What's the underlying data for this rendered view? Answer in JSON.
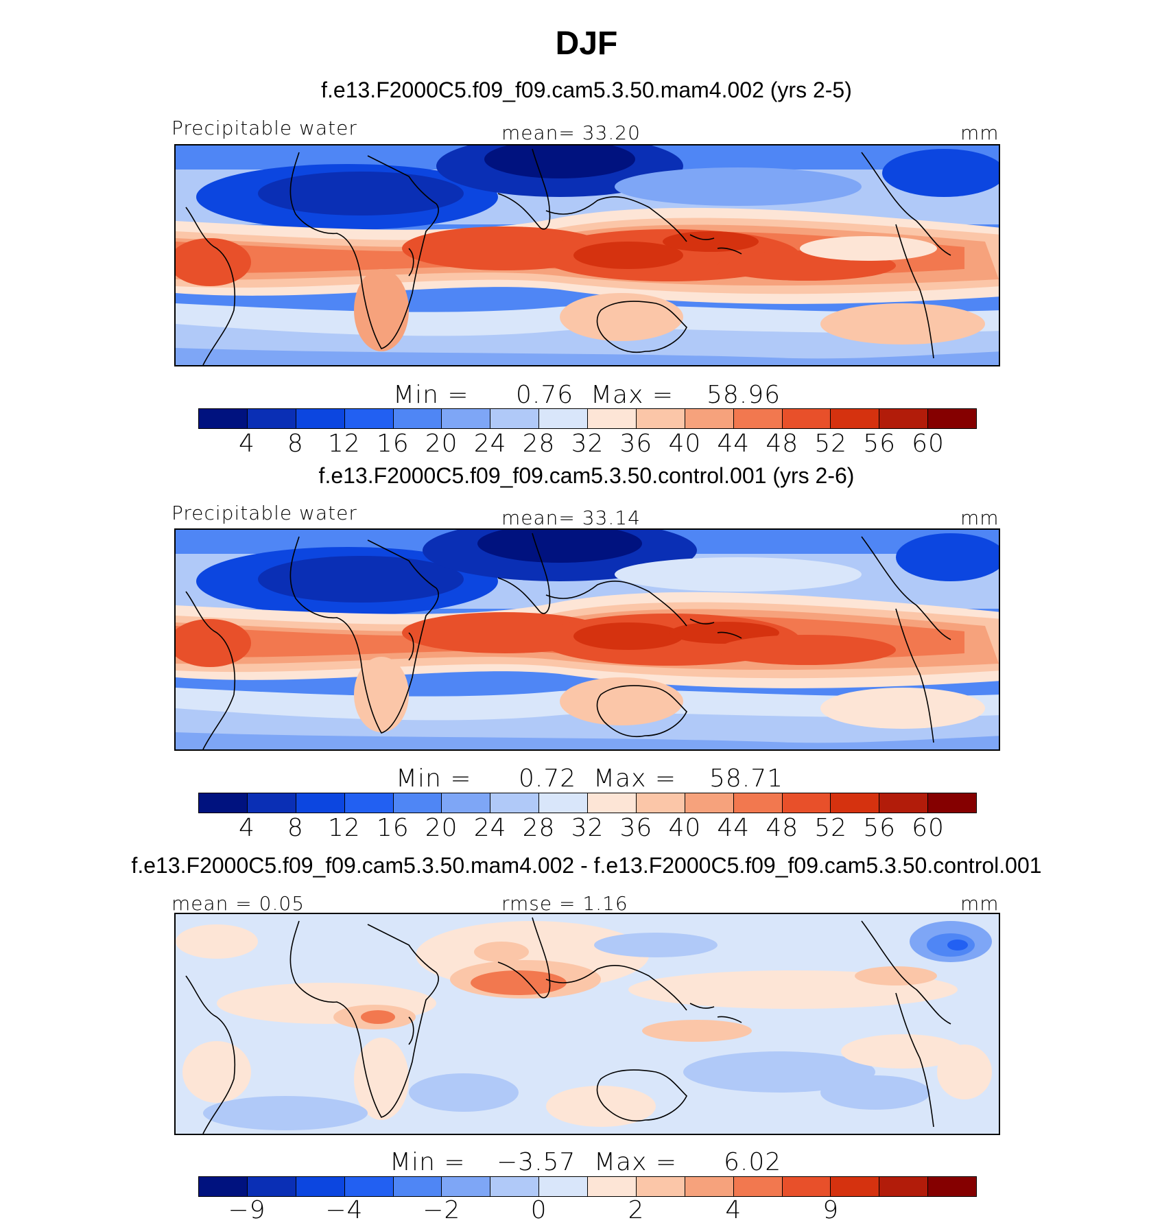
{
  "figure": {
    "title": "DJF"
  },
  "palette": {
    "sequential": [
      "#00127f",
      "#0a2fb5",
      "#0c46e0",
      "#2260f2",
      "#4f86f5",
      "#7ea6f6",
      "#b0c9f8",
      "#d9e6fa",
      "#fde5d6",
      "#fbc6a8",
      "#f6a27c",
      "#f2784f",
      "#e8502a",
      "#d5320f",
      "#b21c0a",
      "#850000"
    ],
    "diverging": [
      "#00127f",
      "#0a2fb5",
      "#0c46e0",
      "#2260f2",
      "#4f86f5",
      "#7ea6f6",
      "#b0c9f8",
      "#d9e6fa",
      "#fde5d6",
      "#fbc6a8",
      "#f6a27c",
      "#f2784f",
      "#e8502a",
      "#d5320f",
      "#b21c0a",
      "#850000"
    ]
  },
  "panels": [
    {
      "case_title": "f.e13.F2000C5.f09_f09.cam5.3.50.mam4.002 (yrs 2-5)",
      "left_label": "Precipitable  water",
      "center_label": "mean=   33.20",
      "right_label": "mm",
      "min_label": "Min  =",
      "min_value": "0.76",
      "max_label": "Max  =",
      "max_value": "58.96",
      "colorbar_ticks": [
        "4",
        "8",
        "12",
        "16",
        "20",
        "24",
        "28",
        "32",
        "36",
        "40",
        "44",
        "48",
        "52",
        "56",
        "60"
      ]
    },
    {
      "case_title": "f.e13.F2000C5.f09_f09.cam5.3.50.control.001 (yrs 2-6)",
      "left_label": "Precipitable  water",
      "center_label": "mean=   33.14",
      "right_label": "mm",
      "min_label": "Min  =",
      "min_value": "0.72",
      "max_label": "Max  =",
      "max_value": "58.71",
      "colorbar_ticks": [
        "4",
        "8",
        "12",
        "16",
        "20",
        "24",
        "28",
        "32",
        "36",
        "40",
        "44",
        "48",
        "52",
        "56",
        "60"
      ]
    },
    {
      "case_title": "f.e13.F2000C5.f09_f09.cam5.3.50.mam4.002 - f.e13.F2000C5.f09_f09.cam5.3.50.control.001",
      "left_label": "mean  =     0.05",
      "center_label": "rmse  =     1.16",
      "right_label": "mm",
      "min_label": "Min  =",
      "min_value": "−3.57",
      "max_label": "Max  =",
      "max_value": "6.02",
      "colorbar_ticks": [
        "−9",
        "",
        "−4",
        "",
        "−2",
        "",
        "0",
        "",
        "2",
        "",
        "4",
        "",
        "9"
      ]
    }
  ]
}
